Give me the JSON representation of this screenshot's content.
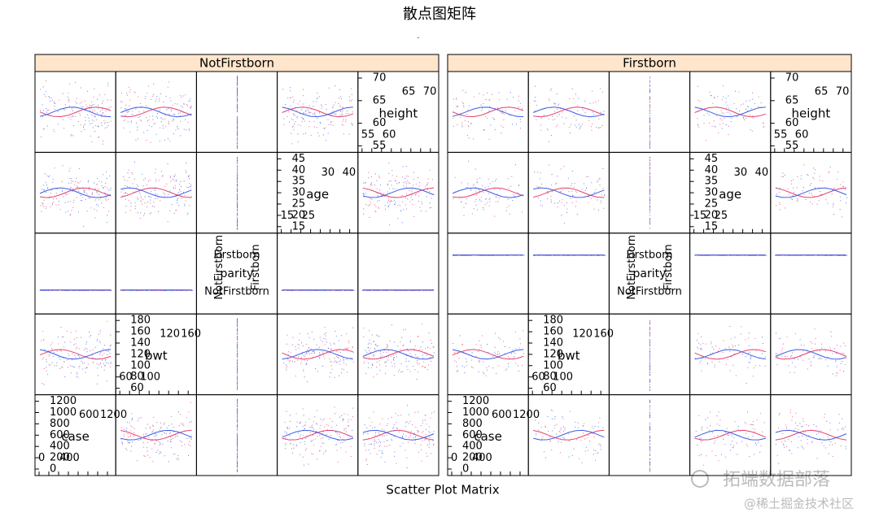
{
  "title": "散点图矩阵",
  "subtitle": ".",
  "xlabel": "Scatter Plot Matrix",
  "panels": [
    {
      "strip": "NotFirstborn"
    },
    {
      "strip": "Firstborn"
    }
  ],
  "variables": [
    {
      "name": "height",
      "vticks": [
        "70",
        "65",
        "60",
        "55"
      ],
      "xticks_low": [
        "55",
        "60"
      ],
      "xticks_high": [
        "65",
        "70"
      ]
    },
    {
      "name": "age",
      "vticks": [
        "45",
        "40",
        "35",
        "30",
        "25",
        "20",
        "15"
      ],
      "xticks_low": [
        "15",
        "25"
      ],
      "xticks_high": [
        "30",
        "40"
      ]
    },
    {
      "name": "parity",
      "levels": [
        "Firstborn",
        "NotFirstborn"
      ],
      "rotated": [
        "NotFirstborn",
        "Firstborn"
      ]
    },
    {
      "name": "bwt",
      "vticks": [
        "180",
        "160",
        "140",
        "120",
        "100",
        "80",
        "60"
      ],
      "xticks_low": [
        "60",
        "100"
      ],
      "xticks_high": [
        "120",
        "160"
      ]
    },
    {
      "name": "case",
      "vticks": [
        "1200",
        "1000",
        "800",
        "600",
        "400",
        "200",
        "0"
      ],
      "xticks_low": [
        "0",
        "400"
      ],
      "xticks_high": [
        "600",
        "1200"
      ]
    }
  ],
  "watermark": {
    "brand": "拓端数据部落",
    "source": "@稀土掘金技术社区"
  }
}
